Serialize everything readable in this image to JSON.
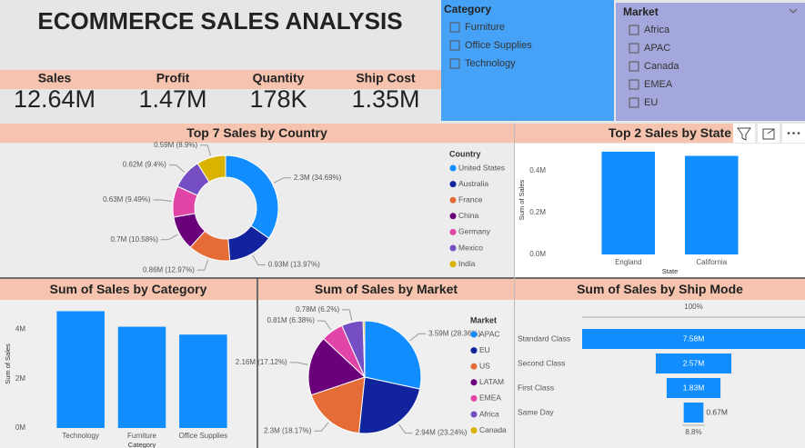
{
  "title": "ECOMMERCE SALES ANALYSIS",
  "kpis": [
    {
      "label": "Sales",
      "value": "12.64M"
    },
    {
      "label": "Profit",
      "value": "1.47M"
    },
    {
      "label": "Quantity",
      "value": "178K"
    },
    {
      "label": "Ship Cost",
      "value": "1.35M"
    }
  ],
  "slicers": [
    {
      "title": "Category",
      "items": [
        "Furniture",
        "Office Supplies",
        "Technology"
      ]
    },
    {
      "title": "Market",
      "items": [
        "Africa",
        "APAC",
        "Canada",
        "EMEA",
        "EU"
      ]
    }
  ],
  "chart_data": [
    {
      "type": "donut",
      "title": "Top 7 Sales by Country",
      "legend_title": "Country",
      "categories": [
        "United States",
        "Australia",
        "France",
        "China",
        "Germany",
        "Mexico",
        "India"
      ],
      "values": [
        2.3,
        0.93,
        0.86,
        0.7,
        0.63,
        0.62,
        0.59
      ],
      "value_labels": [
        "2.3M (34.69%)",
        "0.93M (13.97%)",
        "0.86M (12.97%)",
        "0.7M (10.58%)",
        "0.63M (9.49%)",
        "0.62M (9.4%)",
        "0.59M (8.9%)"
      ],
      "colors": [
        "#118dff",
        "#12239e",
        "#e66c37",
        "#6b007b",
        "#e044a7",
        "#744ec2",
        "#d9b300"
      ]
    },
    {
      "type": "bar",
      "title": "Top 2 Sales by State",
      "x_label": "State",
      "y_label": "Sum of Sales",
      "categories": [
        "England",
        "California"
      ],
      "values": [
        0.49,
        0.47
      ],
      "color": "#118dff",
      "ylim": [
        0,
        0.52
      ],
      "yticks": [
        {
          "value": 0,
          "label": "0.0M"
        },
        {
          "value": 0.2,
          "label": "0.2M"
        },
        {
          "value": 0.4,
          "label": "0.4M"
        }
      ]
    },
    {
      "type": "bar",
      "title": "Sum of Sales by Category",
      "x_label": "Category",
      "y_label": "Sum of Sales",
      "categories": [
        "Technology",
        "Furniture",
        "Office Supplies"
      ],
      "values": [
        4.74,
        4.11,
        3.79
      ],
      "color": "#118dff",
      "ylim": [
        0,
        5.2
      ],
      "yticks": [
        {
          "value": 0,
          "label": "0M"
        },
        {
          "value": 2,
          "label": "2M"
        },
        {
          "value": 4,
          "label": "4M"
        }
      ]
    },
    {
      "type": "pie",
      "title": "Sum of Sales by Market",
      "legend_title": "Market",
      "categories": [
        "APAC",
        "EU",
        "US",
        "LATAM",
        "EMEA",
        "Africa",
        "Canada"
      ],
      "values": [
        3.59,
        2.94,
        2.3,
        2.16,
        0.81,
        0.78,
        0.06
      ],
      "value_labels": [
        "3.59M (28.36%)",
        "2.94M (23.24%)",
        "2.3M (18.17%)",
        "2.16M (17.12%)",
        "0.81M (6.38%)",
        "0.78M (6.2%)",
        null
      ],
      "colors": [
        "#118dff",
        "#12239e",
        "#e66c37",
        "#6b007b",
        "#e044a7",
        "#744ec2",
        "#d9b300"
      ]
    },
    {
      "type": "funnel",
      "title": "Sum of Sales by Ship Mode",
      "categories": [
        "Standard Class",
        "Second Class",
        "First Class",
        "Same Day"
      ],
      "values": [
        7.58,
        2.57,
        1.83,
        0.67
      ],
      "value_labels": [
        "7.58M",
        "2.57M",
        "1.83M",
        "0.67M"
      ],
      "color": "#118dff",
      "top_label": "100%",
      "bottom_label": "8.8%"
    }
  ]
}
